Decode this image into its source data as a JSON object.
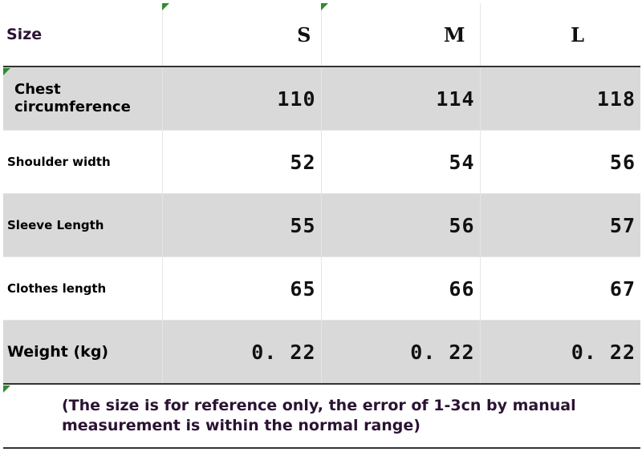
{
  "table": {
    "header": {
      "label": "Size",
      "sizes": [
        "S",
        "M",
        "L"
      ]
    },
    "rows": [
      {
        "label": "Chest circumference",
        "values": [
          "110",
          "114",
          "118"
        ]
      },
      {
        "label": "Shoulder width",
        "values": [
          "52",
          "54",
          "56"
        ]
      },
      {
        "label": "Sleeve Length",
        "values": [
          "55",
          "56",
          "57"
        ]
      },
      {
        "label": "Clothes length",
        "values": [
          "65",
          "66",
          "67"
        ]
      },
      {
        "label": "Weight (kg)",
        "values": [
          "0. 22",
          "0. 22",
          "0. 22"
        ]
      }
    ],
    "note": "(The size is for reference only, the error of 1-3cn by manual measurement is within the normal range)"
  },
  "colors": {
    "band": "#d9d9d9",
    "rule": "#333333",
    "text_dark": "#2b1333",
    "marker": "#2e8b2e"
  }
}
